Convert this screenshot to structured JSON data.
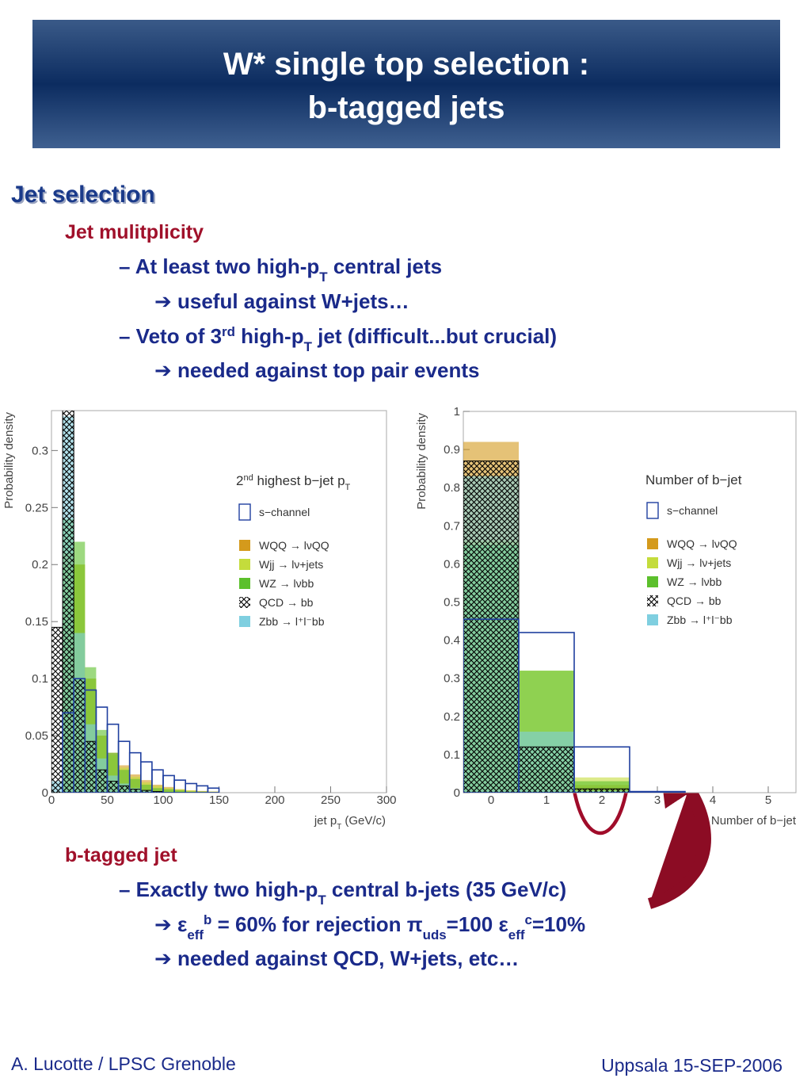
{
  "header": {
    "title": [
      "W* single top selection :",
      "b-tagged jets"
    ]
  },
  "section": {
    "heading": "Jet selection",
    "groups": [
      {
        "heading": "Jet mulitplicity",
        "lines": [
          {
            "parts": [
              {
                "t": "– At least two high-p"
              },
              {
                "t": "T",
                "k": "sub"
              },
              {
                "t": " central jets"
              }
            ]
          },
          {
            "parts": [
              {
                "t": "➔ useful against W+jets…"
              }
            ]
          },
          {
            "parts": [
              {
                "t": "– Veto of 3"
              },
              {
                "t": "rd",
                "k": "sup"
              },
              {
                "t": " high-p"
              },
              {
                "t": "T",
                "k": "sub"
              },
              {
                "t": " jet (difficult...but crucial)"
              }
            ]
          },
          {
            "parts": [
              {
                "t": "➔ needed against top pair events"
              }
            ]
          }
        ]
      },
      {
        "heading": "b-tagged jet",
        "lines": [
          {
            "parts": [
              {
                "t": "– Exactly two high-p"
              },
              {
                "t": "T",
                "k": "sub"
              },
              {
                "t": " central b-jets (35 GeV/c)"
              }
            ]
          },
          {
            "parts": [
              {
                "t": "➔ ε"
              },
              {
                "t": "eff",
                "k": "sub"
              },
              {
                "t": "b",
                "k": "sup"
              },
              {
                "t": " = 60% for rejection π"
              },
              {
                "t": "uds",
                "k": "sub"
              },
              {
                "t": "=100 ε"
              },
              {
                "t": "eff",
                "k": "sub"
              },
              {
                "t": "c",
                "k": "sup"
              },
              {
                "t": "=10%"
              }
            ]
          },
          {
            "parts": [
              {
                "t": "➔ needed against QCD, W+jets, etc…"
              }
            ]
          }
        ]
      }
    ]
  },
  "chart_data": [
    {
      "type": "histogram",
      "title": [
        {
          "t": "2"
        },
        {
          "t": "nd",
          "k": "sup"
        },
        {
          "t": " highest b−jet p"
        },
        {
          "t": "T",
          "k": "sub"
        }
      ],
      "xlabel": [
        {
          "t": "jet p"
        },
        {
          "t": "T",
          "k": "sub"
        },
        {
          "t": " (GeV/c)"
        }
      ],
      "ylabel": "Probability density",
      "bins": [
        0,
        10,
        20,
        30,
        40,
        50,
        60,
        70,
        80,
        90,
        100,
        110,
        120,
        130,
        140,
        150
      ],
      "xlim": [
        0,
        300
      ],
      "xticks": [
        0,
        50,
        100,
        150,
        200,
        250,
        300
      ],
      "ylim": [
        0,
        0.335
      ],
      "yticks": [
        0,
        0.05,
        0.1,
        0.15,
        0.2,
        0.25,
        0.3
      ],
      "series": [
        {
          "name": "s−channel",
          "color": "#1f3f9f",
          "style": "outline",
          "values": [
            0,
            0.07,
            0.1,
            0.09,
            0.075,
            0.06,
            0.045,
            0.035,
            0.027,
            0.02,
            0.015,
            0.011,
            0.008,
            0.006,
            0.004
          ]
        },
        {
          "name": "WQQ → lνQQ",
          "color": "#d49a1c",
          "style": "fill",
          "values": [
            0,
            0.21,
            0.2,
            0.1,
            0.05,
            0.035,
            0.024,
            0.016,
            0.011,
            0.007,
            0.005,
            0.003,
            0.002,
            0.0015,
            0.001
          ]
        },
        {
          "name": "Wjj → lν+jets",
          "color": "#c4dc3c",
          "style": "fill",
          "values": [
            0,
            0.2,
            0.2,
            0.1,
            0.05,
            0.033,
            0.022,
            0.014,
            0.009,
            0.006,
            0.004,
            0.003,
            0.002,
            0.001,
            0.001
          ]
        },
        {
          "name": "WZ → lνbb",
          "color": "#5cc02c",
          "style": "fill",
          "values": [
            0,
            0.24,
            0.22,
            0.11,
            0.055,
            0.035,
            0.02,
            0.012,
            0.007,
            0.004,
            0.003,
            0.002,
            0.001,
            0.001,
            0
          ]
        },
        {
          "name": "QCD → bb",
          "color": "#000000",
          "style": "hatch",
          "values": [
            0.145,
            0.34,
            0.1,
            0.045,
            0.02,
            0.01,
            0.006,
            0.003,
            0.002,
            0.001,
            0,
            0,
            0,
            0,
            0
          ]
        },
        {
          "name": "Zbb → l⁺l⁻bb",
          "color": "#7fcfe0",
          "style": "fill",
          "values": [
            0.01,
            0.33,
            0.14,
            0.06,
            0.03,
            0.015,
            0.008,
            0.004,
            0.002,
            0.001,
            0,
            0,
            0,
            0,
            0
          ]
        }
      ]
    },
    {
      "type": "histogram",
      "title": [
        {
          "t": "Number of b−jet"
        }
      ],
      "xlabel": [
        {
          "t": "Number of b−jet"
        }
      ],
      "ylabel": "Probability density",
      "bins": [
        -0.5,
        0.5,
        1.5,
        2.5,
        3.5,
        4.5,
        5.5
      ],
      "xlim": [
        -0.5,
        5.5
      ],
      "xticks": [
        0,
        1,
        2,
        3,
        4,
        5
      ],
      "ylim": [
        0,
        1
      ],
      "yticks": [
        0,
        0.1,
        0.2,
        0.3,
        0.4,
        0.5,
        0.6,
        0.7,
        0.8,
        0.9,
        1
      ],
      "series": [
        {
          "name": "s−channel",
          "color": "#1f3f9f",
          "style": "outline",
          "values": [
            0.455,
            0.42,
            0.12,
            0.003,
            0,
            0
          ]
        },
        {
          "name": "WQQ → lνQQ",
          "color": "#d49a1c",
          "style": "fill",
          "values": [
            0.92,
            0.06,
            0.02,
            0,
            0,
            0
          ]
        },
        {
          "name": "Wjj → lν+jets",
          "color": "#c4dc3c",
          "style": "fill",
          "values": [
            0.66,
            0.32,
            0.04,
            0,
            0,
            0
          ]
        },
        {
          "name": "WZ → lνbb",
          "color": "#5cc02c",
          "style": "fill",
          "values": [
            0.65,
            0.32,
            0.03,
            0,
            0,
            0
          ]
        },
        {
          "name": "QCD → bb",
          "color": "#000000",
          "style": "hatch",
          "values": [
            0.87,
            0.12,
            0.01,
            0,
            0,
            0
          ]
        },
        {
          "name": "Zbb → l⁺l⁻bb",
          "color": "#7fcfe0",
          "style": "fill",
          "values": [
            0.83,
            0.16,
            0.005,
            0,
            0,
            0
          ]
        }
      ]
    }
  ],
  "footer": {
    "left": "A. Lucotte / LPSC Grenoble",
    "right": "Uppsala 15-SEP-2006"
  }
}
